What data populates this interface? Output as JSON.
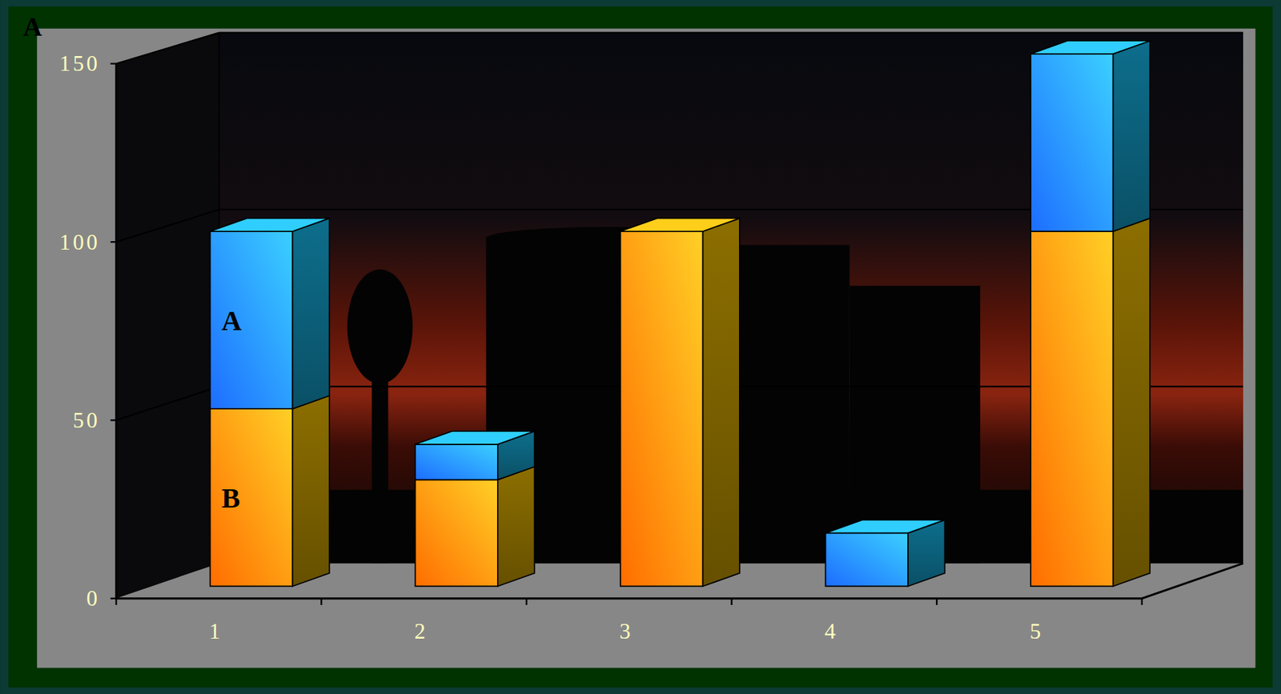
{
  "chart_data": {
    "type": "bar",
    "title": "A",
    "stacked": true,
    "categories": [
      "1",
      "2",
      "3",
      "4",
      "5"
    ],
    "series": [
      {
        "name": "B",
        "color": "#ffc800",
        "values": [
          50,
          30,
          100,
          0,
          100
        ]
      },
      {
        "name": "A",
        "color": "#18c8ff",
        "values": [
          50,
          10,
          0,
          15,
          50
        ]
      }
    ],
    "ylim": [
      0,
      150
    ],
    "yticks": [
      0,
      50,
      100,
      150
    ],
    "grid": true
  }
}
